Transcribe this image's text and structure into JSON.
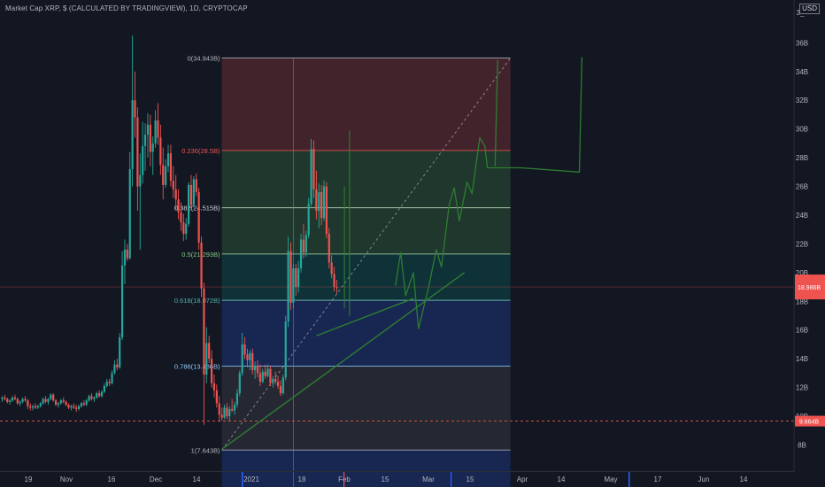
{
  "header": {
    "title": "Market Cap XRP, $ (CALCULATED BY TRADINGVIEW), 1D, CRYPTOCAP",
    "currency_badge": "USD"
  },
  "colors": {
    "background": "#131722",
    "up": "#26a69a",
    "down": "#ef5350",
    "pattern": "#2e7d32"
  },
  "chart_data": {
    "type": "candlestick",
    "title": "Market Cap XRP, $ (CALCULATED BY TRADINGVIEW), 1D, CRYPTOCAP",
    "xlabel": "",
    "ylabel": "",
    "ylim": [
      7,
      39
    ],
    "y_unit": "B",
    "y_ticks": [
      "8B",
      "10B",
      "12B",
      "14B",
      "16B",
      "18B",
      "20B",
      "22B",
      "24B",
      "26B",
      "28B",
      "30B",
      "32B",
      "34B",
      "36B"
    ],
    "y_top_partial": "3_",
    "x_ticks": [
      "19",
      "Nov",
      "16",
      "Dec",
      "14",
      "2021",
      "18",
      "Feb",
      "15",
      "Mar",
      "15",
      "Apr",
      "14",
      "May",
      "17",
      "Jun",
      "14"
    ],
    "grid": false,
    "current_price_label": "18.986B",
    "current_price": 19.0,
    "dashed_level_label": "9.664B",
    "dashed_level": 9.66,
    "fib_levels": [
      {
        "ratio_label": "0",
        "value_label": "34.943B",
        "value": 34.943
      },
      {
        "ratio_label": "0.236",
        "value_label": "28.5B",
        "value": 28.5
      },
      {
        "ratio_label": "0.382",
        "value_label": "24.515B",
        "value": 24.515
      },
      {
        "ratio_label": "0.5",
        "value_label": "21.293B",
        "value": 21.293
      },
      {
        "ratio_label": "0.618",
        "value_label": "18.072B",
        "value": 18.072
      },
      {
        "ratio_label": "0.786",
        "value_label": "13.486B",
        "value": 13.486
      },
      {
        "ratio_label": "1",
        "value_label": "7.643B",
        "value": 7.643
      }
    ],
    "fib_zone_colors": [
      "#ef5350",
      "#4caf50",
      "#4caf50",
      "#009688",
      "#2962ff",
      "#787b86",
      "#2962ff"
    ],
    "candles_daily_from_oct_5": [
      [
        11.2,
        11.4,
        11.0,
        11.3
      ],
      [
        11.3,
        11.5,
        11.1,
        11.2
      ],
      [
        11.2,
        11.3,
        10.9,
        11.0
      ],
      [
        11.0,
        11.2,
        10.8,
        11.1
      ],
      [
        11.1,
        11.4,
        11.0,
        11.3
      ],
      [
        11.3,
        11.5,
        11.1,
        11.2
      ],
      [
        11.2,
        11.3,
        10.8,
        10.9
      ],
      [
        10.9,
        11.1,
        10.7,
        11.0
      ],
      [
        11.0,
        11.3,
        10.9,
        11.2
      ],
      [
        11.2,
        11.4,
        11.0,
        11.1
      ],
      [
        11.1,
        11.2,
        10.5,
        10.7
      ],
      [
        10.7,
        10.9,
        10.4,
        10.6
      ],
      [
        10.6,
        10.8,
        10.4,
        10.7
      ],
      [
        10.7,
        10.9,
        10.5,
        10.6
      ],
      [
        10.6,
        10.8,
        10.5,
        10.7
      ],
      [
        10.7,
        11.0,
        10.6,
        10.9
      ],
      [
        10.9,
        11.3,
        10.8,
        11.2
      ],
      [
        11.2,
        11.4,
        10.9,
        11.0
      ],
      [
        11.0,
        11.3,
        10.8,
        11.2
      ],
      [
        11.2,
        11.6,
        11.1,
        11.5
      ],
      [
        11.5,
        11.6,
        11.0,
        11.1
      ],
      [
        11.1,
        11.2,
        10.7,
        10.8
      ],
      [
        10.8,
        11.0,
        10.6,
        10.9
      ],
      [
        10.9,
        11.2,
        10.8,
        11.1
      ],
      [
        11.1,
        11.3,
        10.9,
        11.0
      ],
      [
        11.0,
        11.1,
        10.7,
        10.8
      ],
      [
        10.8,
        10.9,
        10.5,
        10.6
      ],
      [
        10.6,
        10.8,
        10.4,
        10.7
      ],
      [
        10.7,
        10.9,
        10.5,
        10.6
      ],
      [
        10.6,
        10.8,
        10.3,
        10.5
      ],
      [
        10.5,
        10.8,
        10.4,
        10.7
      ],
      [
        10.7,
        11.0,
        10.6,
        10.9
      ],
      [
        10.9,
        11.1,
        10.7,
        10.8
      ],
      [
        10.8,
        11.2,
        10.7,
        11.1
      ],
      [
        11.1,
        11.5,
        11.0,
        11.4
      ],
      [
        11.4,
        11.6,
        11.1,
        11.2
      ],
      [
        11.2,
        11.4,
        11.0,
        11.3
      ],
      [
        11.3,
        11.7,
        11.2,
        11.6
      ],
      [
        11.6,
        11.8,
        11.3,
        11.4
      ],
      [
        11.4,
        11.8,
        11.3,
        11.7
      ],
      [
        11.7,
        12.3,
        11.6,
        12.1
      ],
      [
        12.1,
        12.6,
        12.0,
        12.4
      ],
      [
        12.4,
        12.6,
        12.1,
        12.3
      ],
      [
        12.3,
        13.2,
        12.2,
        13.0
      ],
      [
        13.0,
        13.9,
        12.9,
        13.6
      ],
      [
        13.6,
        14.0,
        13.2,
        13.4
      ],
      [
        13.4,
        15.8,
        13.3,
        15.5
      ],
      [
        15.5,
        21.5,
        15.3,
        20.5
      ],
      [
        20.5,
        22.3,
        19.2,
        21.6
      ],
      [
        21.6,
        22.0,
        20.8,
        21.0
      ],
      [
        21.0,
        28.4,
        20.9,
        27.2
      ],
      [
        27.2,
        36.5,
        26.0,
        32.0
      ],
      [
        32.0,
        34.0,
        29.4,
        30.8
      ],
      [
        30.8,
        31.5,
        24.3,
        26.0
      ],
      [
        26.0,
        28.3,
        21.6,
        26.8
      ],
      [
        26.8,
        30.5,
        26.2,
        28.8
      ],
      [
        28.8,
        30.4,
        27.1,
        29.6
      ],
      [
        29.6,
        31.1,
        28.0,
        30.3
      ],
      [
        30.3,
        31.0,
        27.4,
        28.4
      ],
      [
        28.4,
        29.5,
        26.8,
        29.0
      ],
      [
        29.0,
        31.3,
        28.7,
        30.6
      ],
      [
        30.6,
        31.8,
        28.9,
        29.4
      ],
      [
        29.4,
        30.3,
        26.8,
        27.5
      ],
      [
        27.5,
        28.7,
        25.1,
        26.1
      ],
      [
        26.1,
        27.9,
        25.9,
        27.4
      ],
      [
        27.4,
        28.9,
        27.0,
        28.3
      ],
      [
        28.3,
        28.9,
        26.0,
        26.4
      ],
      [
        26.4,
        27.4,
        25.2,
        25.8
      ],
      [
        25.8,
        26.8,
        24.4,
        25.1
      ],
      [
        25.1,
        25.8,
        23.7,
        24.2
      ],
      [
        24.2,
        24.9,
        22.9,
        23.5
      ],
      [
        23.5,
        24.1,
        22.2,
        22.7
      ],
      [
        22.7,
        23.8,
        22.3,
        23.4
      ],
      [
        23.4,
        26.3,
        23.2,
        26.1
      ],
      [
        26.1,
        26.8,
        24.4,
        24.7
      ],
      [
        24.7,
        26.7,
        24.5,
        26.5
      ],
      [
        26.5,
        26.9,
        25.3,
        25.6
      ],
      [
        25.6,
        25.9,
        21.6,
        22.1
      ],
      [
        22.1,
        22.5,
        18.3,
        18.9
      ],
      [
        18.9,
        19.3,
        9.4,
        12.9
      ],
      [
        12.9,
        16.2,
        12.3,
        15.1
      ],
      [
        15.1,
        15.6,
        13.7,
        14.0
      ],
      [
        14.0,
        14.6,
        12.0,
        12.3
      ],
      [
        12.3,
        12.9,
        11.3,
        11.8
      ],
      [
        11.8,
        12.2,
        10.6,
        10.9
      ],
      [
        10.9,
        11.4,
        9.6,
        10.1
      ],
      [
        10.1,
        10.6,
        9.7,
        9.9
      ],
      [
        9.9,
        10.8,
        9.8,
        10.6
      ],
      [
        10.6,
        10.9,
        9.8,
        10.0
      ],
      [
        10.0,
        10.7,
        9.7,
        10.5
      ],
      [
        10.5,
        11.2,
        10.3,
        10.4
      ],
      [
        10.4,
        11.0,
        10.1,
        10.8
      ],
      [
        10.8,
        11.9,
        10.6,
        11.6
      ],
      [
        11.6,
        13.2,
        11.4,
        13.0
      ],
      [
        13.0,
        15.8,
        12.8,
        15.0
      ],
      [
        15.0,
        15.5,
        14.0,
        14.3
      ],
      [
        14.3,
        14.7,
        13.4,
        13.9
      ],
      [
        13.9,
        14.6,
        13.2,
        14.4
      ],
      [
        14.4,
        14.7,
        12.9,
        13.2
      ],
      [
        13.2,
        13.8,
        12.6,
        13.5
      ],
      [
        13.5,
        13.9,
        12.7,
        13.0
      ],
      [
        13.0,
        13.6,
        12.1,
        12.4
      ],
      [
        12.4,
        13.3,
        12.3,
        13.1
      ],
      [
        13.1,
        13.6,
        12.6,
        12.8
      ],
      [
        12.8,
        13.6,
        12.7,
        13.3
      ],
      [
        13.3,
        13.5,
        12.1,
        12.3
      ],
      [
        12.3,
        12.8,
        12.0,
        12.6
      ],
      [
        12.6,
        13.1,
        12.2,
        12.4
      ],
      [
        12.4,
        12.8,
        11.9,
        12.1
      ],
      [
        12.1,
        12.5,
        11.4,
        11.6
      ],
      [
        11.6,
        12.9,
        11.5,
        12.7
      ],
      [
        12.7,
        17.0,
        12.5,
        16.6
      ],
      [
        16.6,
        22.5,
        16.2,
        21.5
      ],
      [
        21.5,
        22.1,
        17.4,
        17.9
      ],
      [
        17.9,
        20.6,
        17.5,
        20.3
      ],
      [
        20.3,
        20.6,
        18.4,
        19.0
      ],
      [
        19.0,
        20.8,
        18.6,
        20.3
      ],
      [
        20.3,
        22.7,
        20.0,
        22.3
      ],
      [
        22.3,
        23.4,
        21.0,
        21.4
      ],
      [
        21.4,
        22.9,
        21.1,
        22.6
      ],
      [
        22.6,
        25.2,
        22.4,
        24.8
      ],
      [
        24.8,
        29.3,
        24.6,
        28.6
      ],
      [
        28.6,
        29.2,
        25.2,
        25.8
      ],
      [
        25.8,
        27.1,
        23.7,
        24.3
      ],
      [
        24.3,
        26.2,
        23.1,
        25.6
      ],
      [
        25.6,
        26.1,
        23.3,
        23.8
      ],
      [
        23.8,
        26.4,
        23.6,
        26.0
      ],
      [
        26.0,
        26.3,
        22.4,
        22.7
      ],
      [
        22.7,
        23.1,
        20.3,
        20.7
      ],
      [
        20.7,
        21.2,
        19.6,
        19.9
      ],
      [
        19.9,
        20.4,
        18.7,
        19.0
      ],
      [
        19.0,
        19.5,
        18.5,
        18.99
      ]
    ],
    "projection_path": [
      [
        154,
        19.1
      ],
      [
        156,
        21.4
      ],
      [
        158,
        18.4
      ],
      [
        161,
        20.0
      ],
      [
        163,
        16.1
      ],
      [
        167,
        19.0
      ],
      [
        170,
        21.6
      ],
      [
        172,
        20.4
      ],
      [
        175,
        24.7
      ],
      [
        177,
        25.9
      ],
      [
        179,
        23.6
      ],
      [
        182,
        26.3
      ],
      [
        184,
        25.5
      ],
      [
        187,
        29.4
      ],
      [
        189,
        28.8
      ],
      [
        190,
        27.3
      ],
      [
        203,
        27.3
      ],
      [
        226,
        27.0
      ],
      [
        227,
        35.0
      ]
    ],
    "support_lines": [
      {
        "from": [
          86,
          7.7
        ],
        "to": [
          181,
          20.0
        ]
      },
      {
        "from": [
          123,
          15.6
        ],
        "to": [
          161,
          18.2
        ]
      }
    ],
    "pattern_marks": [
      {
        "from": [
          136,
          17.0
        ],
        "to": [
          136,
          29.9
        ]
      },
      {
        "from": [
          134,
          17.5
        ],
        "to": [
          134,
          26.0
        ]
      }
    ],
    "extra_segment": {
      "from": [
        193,
        27.4
      ],
      "to": [
        194,
        34.8
      ]
    },
    "fib_diagonal": {
      "from": [
        86,
        7.64
      ],
      "to": [
        199,
        34.94
      ]
    },
    "range_vertical_day": 114,
    "fib_box_days": [
      86,
      199
    ]
  }
}
